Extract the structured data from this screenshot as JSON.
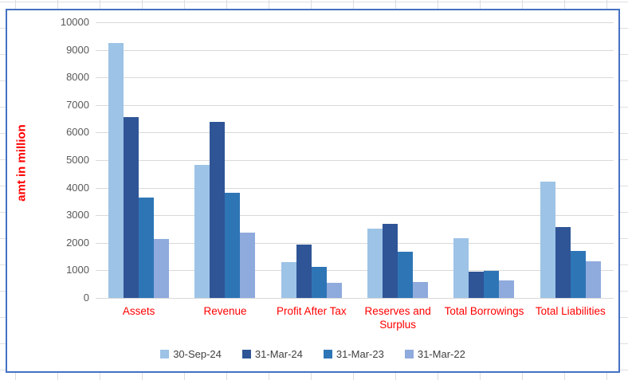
{
  "chart": {
    "border_color": "#4472C4",
    "background": "#ffffff",
    "gridline_color": "#d9d9d9",
    "tick_label_color": "#595959",
    "category_label_color": "#ff0000",
    "axis_title_color": "#ff0000",
    "legend_text_color": "#404040"
  },
  "chart_data": {
    "type": "bar",
    "title": "",
    "xlabel": "",
    "ylabel": "amt in million",
    "ylim": [
      0,
      10000
    ],
    "ytick_interval": 1000,
    "yticks": [
      0,
      1000,
      2000,
      3000,
      4000,
      5000,
      6000,
      7000,
      8000,
      9000,
      10000
    ],
    "grid": true,
    "legend_position": "bottom",
    "categories": [
      "Assets",
      "Revenue",
      "Profit After Tax",
      "Reserves and Surplus",
      "Total Borrowings",
      "Total Liabilities"
    ],
    "series": [
      {
        "name": "30-Sep-24",
        "color": "#9DC3E6",
        "values": [
          9250,
          4840,
          1290,
          2520,
          2160,
          4230
        ]
      },
      {
        "name": "31-Mar-24",
        "color": "#2F5597",
        "values": [
          6560,
          6390,
          1950,
          2700,
          940,
          2580
        ]
      },
      {
        "name": "31-Mar-23",
        "color": "#2E75B6",
        "values": [
          3650,
          3810,
          1130,
          1690,
          980,
          1720
        ]
      },
      {
        "name": "31-Mar-22",
        "color": "#8FAADC",
        "values": [
          2130,
          2380,
          560,
          590,
          640,
          1330
        ]
      }
    ]
  }
}
